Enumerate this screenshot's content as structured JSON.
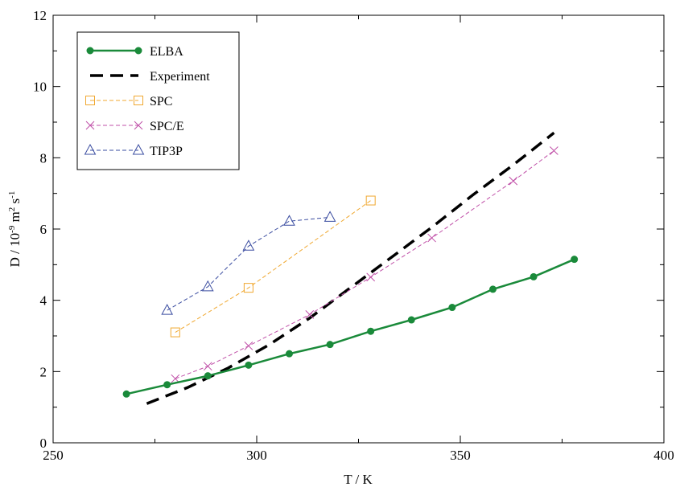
{
  "chart_data": {
    "type": "line",
    "title": "",
    "xlabel": "T / K",
    "ylabel": {
      "base": "D / 10",
      "exp1": "-9",
      "mid": " m",
      "exp2": "2",
      "mid2": " s",
      "exp3": "-1"
    },
    "xlim": [
      250,
      400
    ],
    "ylim": [
      0,
      12
    ],
    "xticks": [
      250,
      300,
      350,
      400
    ],
    "yticks": [
      0,
      2,
      4,
      6,
      8,
      10,
      12
    ],
    "grid": false,
    "legend_position": "top-left",
    "series": [
      {
        "name": "ELBA",
        "color": "#1a8a3a",
        "style": "solid-line-dot-markers",
        "points": [
          [
            268,
            1.37
          ],
          [
            278,
            1.63
          ],
          [
            288,
            1.88
          ],
          [
            298,
            2.18
          ],
          [
            308,
            2.5
          ],
          [
            318,
            2.76
          ],
          [
            328,
            3.13
          ],
          [
            338,
            3.45
          ],
          [
            348,
            3.8
          ],
          [
            358,
            4.31
          ],
          [
            368,
            4.66
          ],
          [
            378,
            5.15
          ]
        ]
      },
      {
        "name": "Experiment",
        "color": "#000000",
        "style": "thick-dashed",
        "points": [
          [
            273,
            1.1
          ],
          [
            283,
            1.55
          ],
          [
            293,
            2.1
          ],
          [
            303,
            2.75
          ],
          [
            313,
            3.5
          ],
          [
            323,
            4.35
          ],
          [
            333,
            5.2
          ],
          [
            343,
            6.05
          ],
          [
            353,
            6.95
          ],
          [
            363,
            7.8
          ],
          [
            373,
            8.7
          ]
        ]
      },
      {
        "name": "SPC",
        "color": "#f0a830",
        "style": "dashed-square-markers",
        "points": [
          [
            280,
            3.1
          ],
          [
            298,
            4.35
          ],
          [
            328,
            6.8
          ]
        ]
      },
      {
        "name": "SPC/E",
        "color": "#c050a8",
        "style": "dashed-x-markers",
        "points": [
          [
            280,
            1.8
          ],
          [
            288,
            2.15
          ],
          [
            298,
            2.72
          ],
          [
            313,
            3.6
          ],
          [
            328,
            4.65
          ],
          [
            343,
            5.75
          ],
          [
            363,
            7.35
          ],
          [
            373,
            8.2
          ]
        ]
      },
      {
        "name": "TIP3P",
        "color": "#3a4ca0",
        "style": "dashed-triangle-markers",
        "points": [
          [
            278,
            3.72
          ],
          [
            288,
            4.38
          ],
          [
            298,
            5.52
          ],
          [
            308,
            6.22
          ],
          [
            318,
            6.33
          ]
        ]
      }
    ]
  }
}
